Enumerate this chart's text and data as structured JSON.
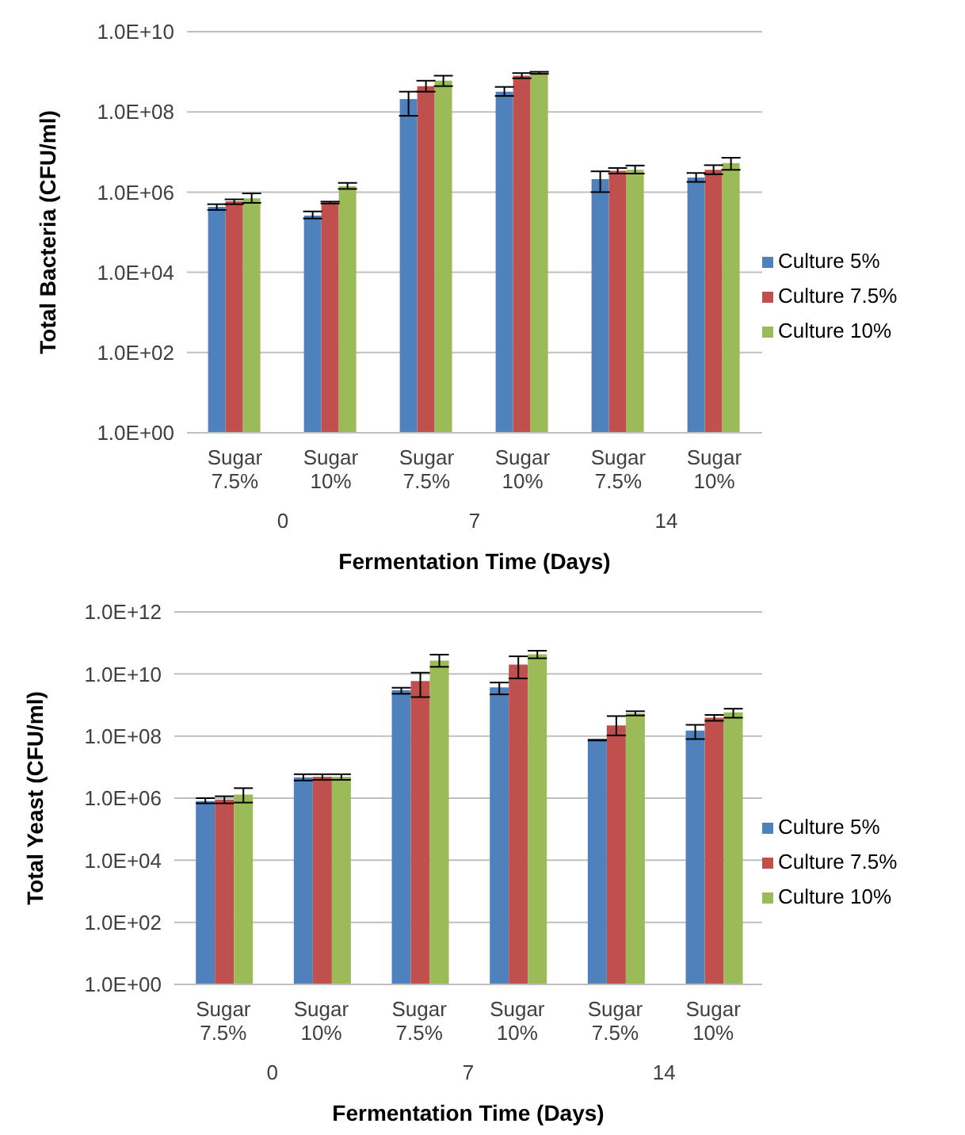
{
  "chart_data": [
    {
      "type": "bar",
      "ylabel": "Total Bacteria (CFU/ml)",
      "xlabel": "Fermentation Time (Days)",
      "categories": [
        "Sugar 7.5%",
        "Sugar 10%",
        "Sugar 7.5%",
        "Sugar 10%",
        "Sugar 7.5%",
        "Sugar 10%"
      ],
      "annotations": [
        "0",
        "7",
        "14"
      ],
      "log": "y",
      "grid": "y",
      "legend": "right",
      "ylim": [
        1,
        10000000000
      ],
      "yticks": [
        {
          "value": 1,
          "label": "1.0E+00"
        },
        {
          "value": 100,
          "label": "1.0E+02"
        },
        {
          "value": 10000,
          "label": "1.0E+04"
        },
        {
          "value": 1000000,
          "label": "1.0E+06"
        },
        {
          "value": 100000000,
          "label": "1.0E+08"
        },
        {
          "value": 10000000000,
          "label": "1.0E+10"
        }
      ],
      "series": [
        {
          "name": "Culture 5%",
          "color": "#4f81bd",
          "values": [
            430000,
            260000,
            210000000,
            320000000,
            2100000,
            2300000
          ],
          "errors": [
            [
              360000,
              500000
            ],
            [
              220000,
              330000
            ],
            [
              80000000,
              320000000
            ],
            [
              250000000,
              420000000
            ],
            [
              1000000,
              3300000
            ],
            [
              1800000,
              3000000
            ]
          ]
        },
        {
          "name": "Culture 7.5%",
          "color": "#c0504d",
          "values": [
            590000,
            550000,
            440000000,
            800000000,
            3400000,
            3600000
          ],
          "errors": [
            [
              500000,
              660000
            ],
            [
              520000,
              580000
            ],
            [
              320000000,
              600000000
            ],
            [
              690000000,
              930000000
            ],
            [
              2900000,
              4000000
            ],
            [
              2800000,
              4700000
            ]
          ]
        },
        {
          "name": "Culture 10%",
          "color": "#9bbb59",
          "values": [
            700000,
            1400000,
            600000000,
            930000000,
            3600000,
            5300000
          ],
          "errors": [
            [
              540000,
              930000
            ],
            [
              1200000,
              1700000
            ],
            [
              440000000,
              800000000
            ],
            [
              890000000,
              1000000000
            ],
            [
              2900000,
              4600000
            ],
            [
              3600000,
              7200000
            ]
          ]
        }
      ]
    },
    {
      "type": "bar",
      "ylabel": "Total Yeast (CFU/ml)",
      "xlabel": "Fermentation Time (Days)",
      "categories": [
        "Sugar 7.5%",
        "Sugar 10%",
        "Sugar 7.5%",
        "Sugar 10%",
        "Sugar 7.5%",
        "Sugar 10%"
      ],
      "annotations": [
        "0",
        "7",
        "14"
      ],
      "log": "y",
      "grid": "y",
      "legend": "right",
      "ylim": [
        1,
        1000000000000
      ],
      "yticks": [
        {
          "value": 1,
          "label": "1.0E+00"
        },
        {
          "value": 100,
          "label": "1.0E+02"
        },
        {
          "value": 10000,
          "label": "1.0E+04"
        },
        {
          "value": 1000000,
          "label": "1.0E+06"
        },
        {
          "value": 100000000,
          "label": "1.0E+08"
        },
        {
          "value": 10000000000,
          "label": "1.0E+10"
        },
        {
          "value": 1000000000000,
          "label": "1.0E+12"
        }
      ],
      "series": [
        {
          "name": "Culture 5%",
          "color": "#4f81bd",
          "values": [
            800000,
            4700000,
            3000000000,
            3700000000,
            74000000,
            150000000
          ],
          "errors": [
            [
              680000,
              1000000
            ],
            [
              3700000,
              5900000
            ],
            [
              2300000000,
              3600000000
            ],
            [
              2200000000,
              5300000000
            ],
            [
              72000000,
              76000000
            ],
            [
              80000000,
              230000000
            ]
          ]
        },
        {
          "name": "Culture 7.5%",
          "color": "#c0504d",
          "values": [
            900000,
            4900000,
            5900000000,
            20000000000,
            220000000,
            390000000
          ],
          "errors": [
            [
              680000,
              1150000
            ],
            [
              3900000,
              5900000
            ],
            [
              1800000000,
              11000000000
            ],
            [
              7200000000,
              37000000000
            ],
            [
              105000000,
              440000000
            ],
            [
              310000000,
              480000000
            ]
          ]
        },
        {
          "name": "Culture 10%",
          "color": "#9bbb59",
          "values": [
            1300000,
            4900000,
            27000000000,
            43000000000,
            540000000,
            580000000
          ],
          "errors": [
            [
              720000,
              2100000
            ],
            [
              3900000,
              5900000
            ],
            [
              17000000000,
              42000000000
            ],
            [
              32000000000,
              56000000000
            ],
            [
              460000000,
              630000000
            ],
            [
              390000000,
              760000000
            ]
          ]
        }
      ]
    }
  ]
}
